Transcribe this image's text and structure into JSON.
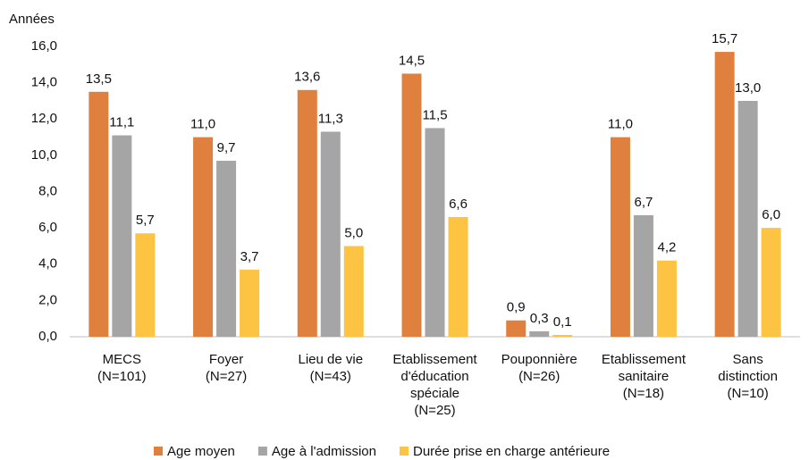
{
  "chart_data": {
    "type": "bar",
    "y_axis_label": "Années",
    "categories": [
      "MECS\n(N=101)",
      "Foyer\n(N=27)",
      "Lieu de vie\n(N=43)",
      "Etablissement\nd'éducation\nspéciale\n(N=25)",
      "Pouponnière\n(N=26)",
      "Etablissement\nsanitaire\n(N=18)",
      "Sans\ndistinction\n(N=10)"
    ],
    "series": [
      {
        "name": "Age moyen",
        "color": "#e0803f",
        "values": [
          13.5,
          11.0,
          13.6,
          14.5,
          0.9,
          11.0,
          15.7
        ],
        "value_labels": [
          "13,5",
          "11,0",
          "13,6",
          "14,5",
          "0,9",
          "11,0",
          "15,7"
        ]
      },
      {
        "name": "Age à l'admission",
        "color": "#a5a5a5",
        "values": [
          11.1,
          9.7,
          11.3,
          11.5,
          0.3,
          6.7,
          13.0
        ],
        "value_labels": [
          "11,1",
          "9,7",
          "11,3",
          "11,5",
          "0,3",
          "6,7",
          "13,0"
        ]
      },
      {
        "name": "Durée prise en charge antérieure",
        "color": "#fdc443",
        "values": [
          5.7,
          3.7,
          5.0,
          6.6,
          0.1,
          4.2,
          6.0
        ],
        "value_labels": [
          "5,7",
          "3,7",
          "5,0",
          "6,6",
          "0,1",
          "4,2",
          "6,0"
        ]
      }
    ],
    "ylim": [
      0,
      16
    ],
    "yticks": [
      {
        "value": 0,
        "label": "0,0"
      },
      {
        "value": 2,
        "label": "2,0"
      },
      {
        "value": 4,
        "label": "4,0"
      },
      {
        "value": 6,
        "label": "6,0"
      },
      {
        "value": 8,
        "label": "8,0"
      },
      {
        "value": 10,
        "label": "10,0"
      },
      {
        "value": 12,
        "label": "12,0"
      },
      {
        "value": 14,
        "label": "14,0"
      },
      {
        "value": 16,
        "label": "16,0"
      }
    ],
    "grid": false,
    "legend": "bottom"
  }
}
